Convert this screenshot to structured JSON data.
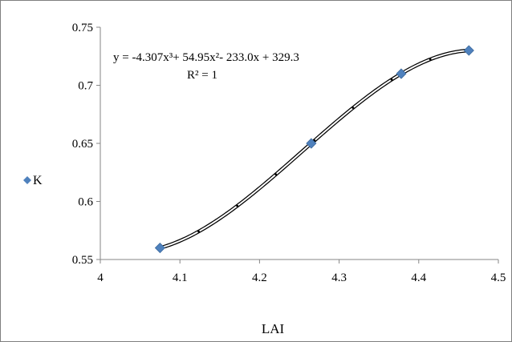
{
  "chart_data": {
    "type": "scatter",
    "xlabel": "LAI",
    "ylabel": "",
    "xlim": [
      4,
      4.5
    ],
    "ylim": [
      0.55,
      0.75
    ],
    "x_ticks": [
      "4",
      "4.1",
      "4.2",
      "4.3",
      "4.4",
      "4.5"
    ],
    "y_ticks": [
      "0.55",
      "0.6",
      "0.65",
      "0.7",
      "0.75"
    ],
    "grid": false,
    "legend_position": "left",
    "series": [
      {
        "name": "K",
        "marker": "diamond",
        "color": "#4f81bd",
        "x": [
          4.075,
          4.265,
          4.378,
          4.463
        ],
        "y": [
          0.56,
          0.65,
          0.71,
          0.73
        ]
      }
    ],
    "trendline": {
      "type": "polynomial",
      "order": 3,
      "color": "#000000",
      "coefficients": [
        -4.307,
        54.95,
        -233.0,
        329.3
      ],
      "equation_label": "y = -4.307x³+ 54.95x²- 233.0x + 329.3",
      "r2_label": "R² = 1"
    }
  }
}
